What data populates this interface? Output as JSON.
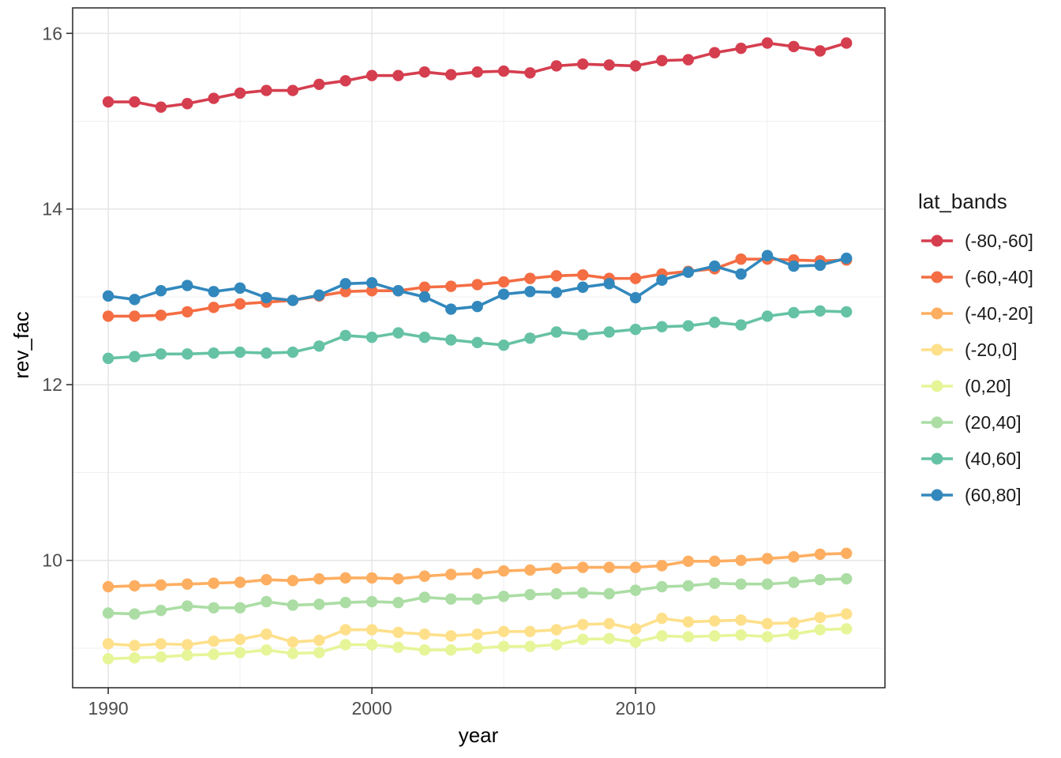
{
  "chart_data": {
    "type": "line",
    "title": "",
    "xlabel": "year",
    "ylabel": "rev_fac",
    "legend_title": "lat_bands",
    "legend_position": "right",
    "grid": true,
    "x_ticks": [
      1990,
      2000,
      2010
    ],
    "x_minor_ticks": [
      1995,
      2005,
      2015
    ],
    "y_ticks": [
      10,
      12,
      14,
      16
    ],
    "y_minor_ticks": [
      9,
      11,
      13,
      15
    ],
    "x_domain": [
      1988.65,
      2019.46
    ],
    "y_domain": [
      8.55,
      16.29
    ],
    "x": [
      1990,
      1991,
      1992,
      1993,
      1994,
      1995,
      1996,
      1997,
      1998,
      1999,
      2000,
      2001,
      2002,
      2003,
      2004,
      2005,
      2006,
      2007,
      2008,
      2009,
      2010,
      2011,
      2012,
      2013,
      2014,
      2015,
      2016,
      2017,
      2018
    ],
    "series": [
      {
        "name": "(-80,-60]",
        "color": "#D53E4F",
        "values": [
          15.22,
          15.22,
          15.16,
          15.2,
          15.26,
          15.32,
          15.35,
          15.35,
          15.42,
          15.46,
          15.52,
          15.52,
          15.56,
          15.53,
          15.56,
          15.57,
          15.55,
          15.63,
          15.65,
          15.64,
          15.63,
          15.69,
          15.7,
          15.78,
          15.83,
          15.89,
          15.85,
          15.8,
          15.89
        ]
      },
      {
        "name": "(-60,-40]",
        "color": "#F46D43",
        "values": [
          12.78,
          12.78,
          12.79,
          12.83,
          12.88,
          12.92,
          12.94,
          12.96,
          13.01,
          13.06,
          13.07,
          13.07,
          13.11,
          13.12,
          13.14,
          13.17,
          13.21,
          13.24,
          13.25,
          13.21,
          13.21,
          13.26,
          13.29,
          13.32,
          13.43,
          13.43,
          13.42,
          13.41,
          13.42
        ]
      },
      {
        "name": "(-40,-20]",
        "color": "#FDAE61",
        "values": [
          9.7,
          9.71,
          9.72,
          9.73,
          9.74,
          9.75,
          9.78,
          9.77,
          9.79,
          9.8,
          9.8,
          9.79,
          9.82,
          9.84,
          9.85,
          9.88,
          9.89,
          9.91,
          9.92,
          9.92,
          9.92,
          9.94,
          9.99,
          9.99,
          10.0,
          10.02,
          10.04,
          10.07,
          10.08
        ]
      },
      {
        "name": "(-20,0]",
        "color": "#FEE08B",
        "values": [
          9.05,
          9.03,
          9.05,
          9.04,
          9.08,
          9.1,
          9.16,
          9.07,
          9.09,
          9.21,
          9.21,
          9.18,
          9.16,
          9.14,
          9.16,
          9.19,
          9.19,
          9.21,
          9.27,
          9.28,
          9.22,
          9.34,
          9.3,
          9.31,
          9.32,
          9.28,
          9.29,
          9.35,
          9.39
        ]
      },
      {
        "name": "(0,20]",
        "color": "#E6F598",
        "values": [
          8.88,
          8.89,
          8.9,
          8.92,
          8.93,
          8.95,
          8.98,
          8.94,
          8.95,
          9.04,
          9.04,
          9.01,
          8.98,
          8.98,
          9.0,
          9.02,
          9.02,
          9.04,
          9.1,
          9.11,
          9.07,
          9.14,
          9.13,
          9.14,
          9.15,
          9.13,
          9.16,
          9.21,
          9.22
        ]
      },
      {
        "name": "(20,40]",
        "color": "#ABDDA4",
        "values": [
          9.4,
          9.39,
          9.43,
          9.48,
          9.46,
          9.46,
          9.53,
          9.49,
          9.5,
          9.52,
          9.53,
          9.52,
          9.58,
          9.56,
          9.56,
          9.59,
          9.61,
          9.62,
          9.63,
          9.62,
          9.66,
          9.7,
          9.71,
          9.74,
          9.73,
          9.73,
          9.75,
          9.78,
          9.79
        ]
      },
      {
        "name": "(40,60]",
        "color": "#66C2A5",
        "values": [
          12.3,
          12.32,
          12.35,
          12.35,
          12.36,
          12.37,
          12.36,
          12.37,
          12.44,
          12.56,
          12.54,
          12.59,
          12.54,
          12.51,
          12.48,
          12.45,
          12.53,
          12.6,
          12.57,
          12.6,
          12.63,
          12.66,
          12.67,
          12.71,
          12.68,
          12.78,
          12.82,
          12.84,
          12.83
        ]
      },
      {
        "name": "(60,80]",
        "color": "#3288BD",
        "values": [
          13.01,
          12.97,
          13.07,
          13.13,
          13.06,
          13.1,
          12.99,
          12.96,
          13.02,
          13.15,
          13.16,
          13.07,
          13.0,
          12.86,
          12.89,
          13.03,
          13.06,
          13.05,
          13.11,
          13.15,
          12.99,
          13.19,
          13.28,
          13.35,
          13.26,
          13.47,
          13.35,
          13.36,
          13.44
        ]
      }
    ]
  },
  "colors": {
    "panel_background": "#FFFFFF",
    "panel_border": "#333333",
    "grid_major": "#E5E5E5",
    "grid_minor": "#F0F0F0",
    "tick_mark": "#333333",
    "tick_label": "#4D4D4D",
    "axis_title": "#000000",
    "legend_text": "#1A1A1A"
  }
}
